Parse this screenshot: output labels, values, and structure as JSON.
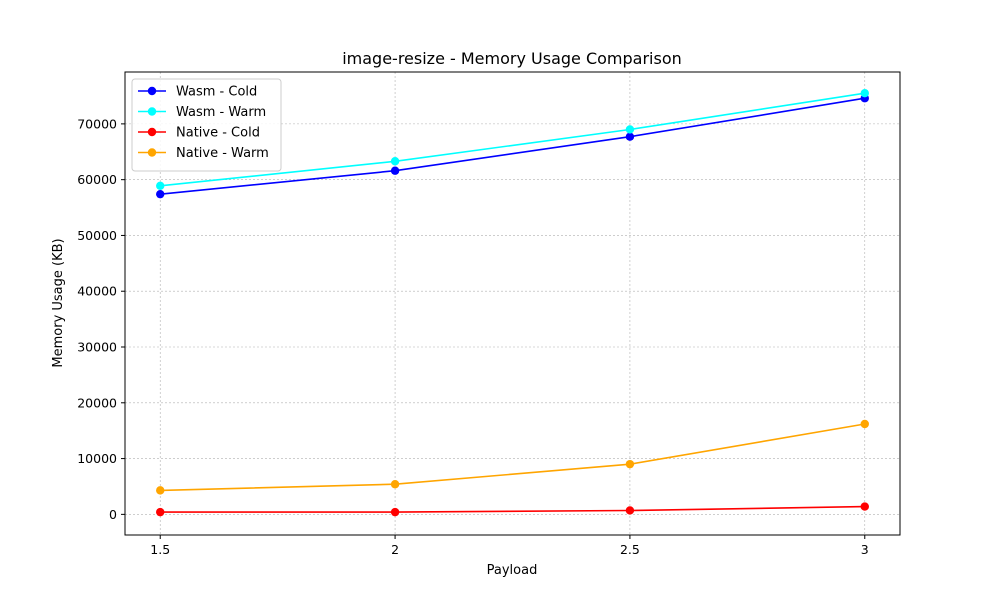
{
  "chart_data": {
    "type": "line",
    "title": "image-resize - Memory Usage Comparison",
    "xlabel": "Payload",
    "ylabel": "Memory Usage (KB)",
    "x": [
      1.5,
      2,
      2.5,
      3
    ],
    "x_tick_labels": [
      "1.5",
      "2",
      "2.5",
      "3"
    ],
    "xlim": [
      1.425,
      3.075
    ],
    "y_ticks": [
      0,
      10000,
      20000,
      30000,
      40000,
      50000,
      60000,
      70000
    ],
    "y_tick_labels": [
      "0",
      "10000",
      "20000",
      "30000",
      "40000",
      "50000",
      "60000",
      "70000"
    ],
    "ylim": [
      -3700,
      79300
    ],
    "grid": true,
    "legend_position": "top-left",
    "series": [
      {
        "name": "Wasm - Cold",
        "color": "#0000ff",
        "values": [
          57400,
          61600,
          67700,
          74600
        ]
      },
      {
        "name": "Wasm - Warm",
        "color": "#00ffff",
        "values": [
          58900,
          63300,
          69000,
          75500
        ]
      },
      {
        "name": "Native - Cold",
        "color": "#ff0000",
        "values": [
          400,
          400,
          700,
          1400
        ]
      },
      {
        "name": "Native - Warm",
        "color": "#ffa500",
        "values": [
          4300,
          5400,
          9000,
          16200
        ]
      }
    ]
  }
}
